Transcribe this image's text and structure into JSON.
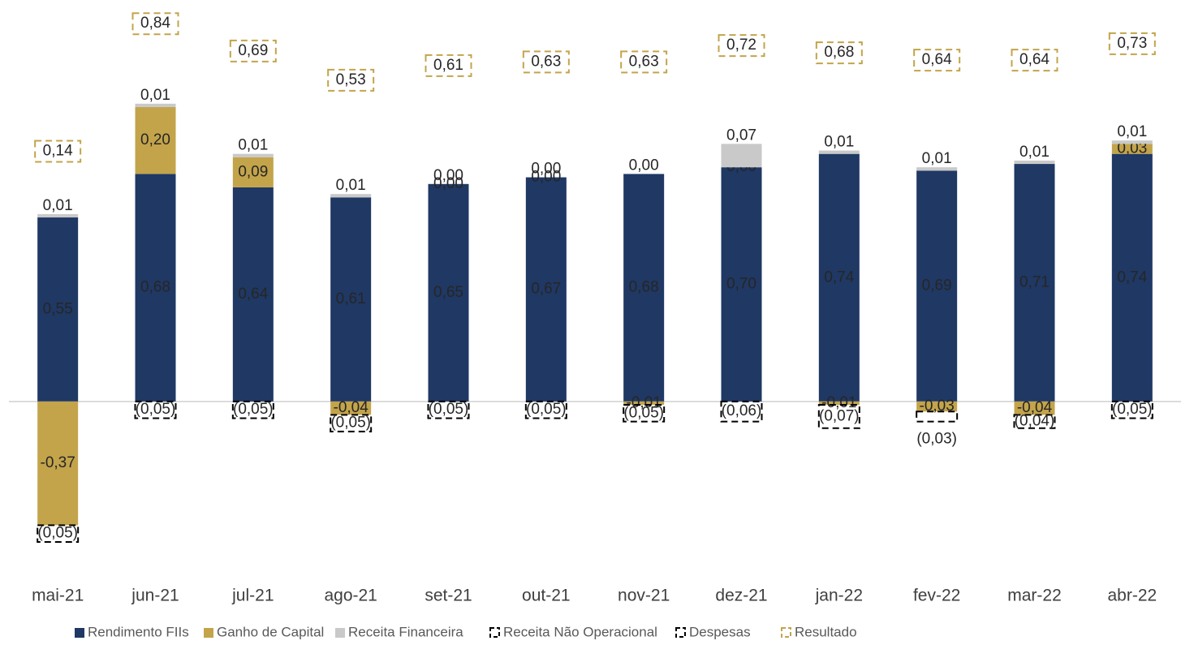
{
  "chart_data": {
    "type": "bar",
    "stacked": true,
    "categories": [
      "mai-21",
      "jun-21",
      "jul-21",
      "ago-21",
      "set-21",
      "out-21",
      "nov-21",
      "dez-21",
      "jan-22",
      "fev-22",
      "mar-22",
      "abr-22"
    ],
    "ylim": [
      -0.5,
      1.2
    ],
    "y2lim": [
      -2.15,
      0.97
    ],
    "series": [
      {
        "name": "Rendimento FIIs",
        "color": "#1f3864",
        "style": "solid",
        "values": [
          0.55,
          0.68,
          0.64,
          0.61,
          0.65,
          0.67,
          0.68,
          0.7,
          0.74,
          0.69,
          0.71,
          0.74
        ],
        "value_labels": [
          "0,55",
          "0,68",
          "0,64",
          "0,61",
          "0,65",
          "0,67",
          "0,68",
          "0,70",
          "0,74",
          "0,69",
          "0,71",
          "0,74"
        ]
      },
      {
        "name": "Ganho de Capital",
        "color": "#c3a44b",
        "style": "solid",
        "values": [
          -0.37,
          0.2,
          0.09,
          -0.04,
          0.0,
          0.0,
          -0.01,
          0.0,
          -0.01,
          -0.03,
          -0.04,
          0.03
        ],
        "value_labels": [
          "-0,37",
          "0,20",
          "0,09",
          "-0,04",
          "0,00",
          "0,00",
          "-0,01",
          "0,00",
          "-0,01",
          "-0,03",
          "-0,04",
          "0,03"
        ]
      },
      {
        "name": "Receita Financeira",
        "color": "#c9c9c9",
        "style": "solid",
        "values": [
          0.01,
          0.01,
          0.01,
          0.01,
          0.0,
          0.0,
          0.0,
          0.07,
          0.01,
          0.01,
          0.01,
          0.01
        ],
        "value_labels": [
          "0,01",
          "0,01",
          "0,01",
          "0,01",
          "0,00",
          "0,00",
          "0,00",
          "0,07",
          "0,01",
          "0,01",
          "0,01",
          "0,01"
        ]
      },
      {
        "name": "Receita Não Operacional",
        "color": "#000000",
        "style": "dashed",
        "values": [
          0,
          0,
          0,
          0,
          0,
          0,
          0,
          0,
          0,
          0,
          0,
          0
        ]
      },
      {
        "name": "Despesas",
        "color": "#000000",
        "style": "dashed",
        "values": [
          -0.05,
          -0.05,
          -0.05,
          -0.05,
          -0.05,
          -0.05,
          -0.05,
          -0.06,
          -0.07,
          -0.03,
          -0.04,
          -0.05
        ],
        "value_labels": [
          "(0,05)",
          "(0,05)",
          "(0,05)",
          "(0,05)",
          "(0,05)",
          "(0,05)",
          "(0,05)",
          "(0,06)",
          "(0,07)",
          "(0,03)",
          "(0,04)",
          "(0,05)"
        ]
      },
      {
        "name": "Resultado",
        "color": "#c3a44b",
        "style": "dashed-box",
        "axis": "y2",
        "values": [
          0.14,
          0.84,
          0.69,
          0.53,
          0.61,
          0.63,
          0.63,
          0.72,
          0.68,
          0.64,
          0.64,
          0.73
        ],
        "value_labels": [
          "0,14",
          "0,84",
          "0,69",
          "0,53",
          "0,61",
          "0,63",
          "0,63",
          "0,72",
          "0,68",
          "0,64",
          "0,64",
          "0,73"
        ]
      }
    ]
  }
}
